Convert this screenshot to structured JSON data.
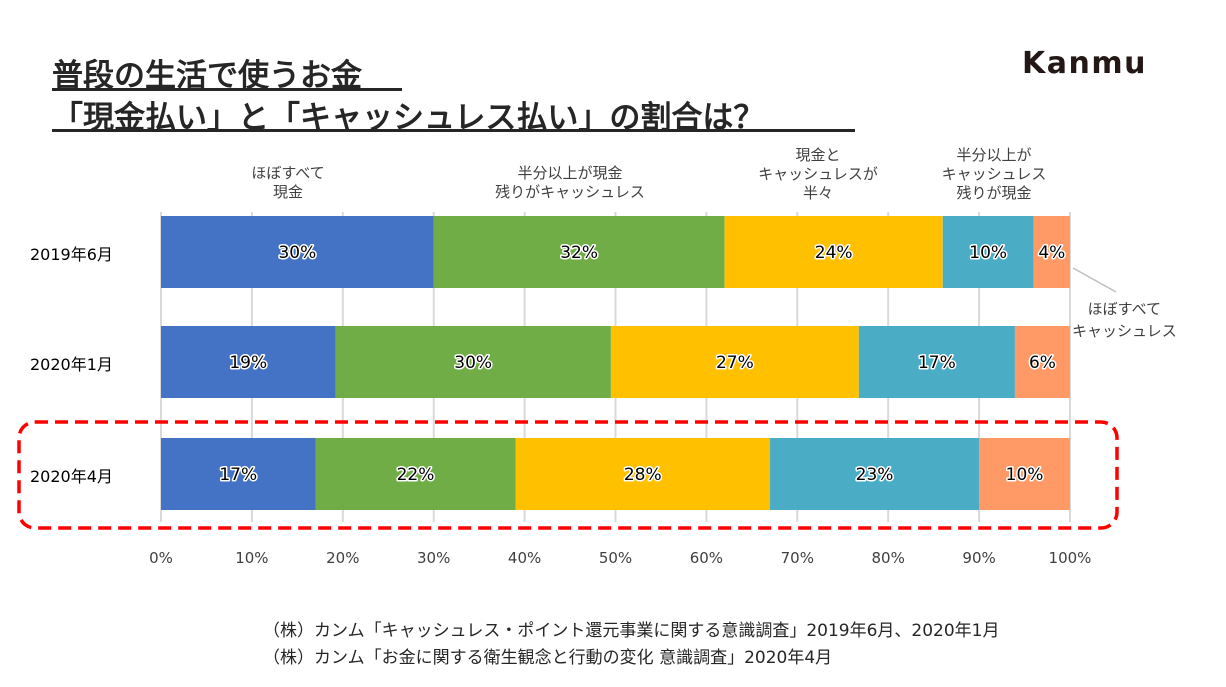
{
  "header": {
    "title_line1": "普段の生活で使うお金",
    "title_line2": "「現金払い」と「キャッシュレス払い」の割合は？",
    "logo": "Kanmu"
  },
  "chart_data": {
    "type": "bar",
    "orientation": "horizontal",
    "stacked": true,
    "normalized_percent": true,
    "title": "普段の生活で使うお金 「現金払い」と「キャッシュレス払い」の割合は？",
    "xlabel": "",
    "ylabel": "",
    "xlim": [
      0,
      100
    ],
    "x_ticks": [
      "0%",
      "10%",
      "20%",
      "30%",
      "40%",
      "50%",
      "60%",
      "70%",
      "80%",
      "90%",
      "100%"
    ],
    "grid": "vertical",
    "categories": [
      "2019年6月",
      "2020年1月",
      "2020年4月"
    ],
    "series": [
      {
        "name": "ほぼすべて現金",
        "label_lines": [
          "ほぼすべて",
          "現金"
        ],
        "color": "#4472C4",
        "values": [
          30,
          19,
          17
        ]
      },
      {
        "name": "半分以上が現金 残りがキャッシュレス",
        "label_lines": [
          "半分以上が現金",
          "残りがキャッシュレス"
        ],
        "color": "#70AD47",
        "values": [
          32,
          30,
          22
        ]
      },
      {
        "name": "現金とキャッシュレスが半々",
        "label_lines": [
          "現金と",
          "キャッシュレスが",
          "半々"
        ],
        "color": "#FFC000",
        "values": [
          24,
          27,
          28
        ]
      },
      {
        "name": "半分以上がキャッシュレス 残りが現金",
        "label_lines": [
          "半分以上が",
          "キャッシュレス",
          "残りが現金"
        ],
        "color": "#4BACC6",
        "values": [
          10,
          17,
          23
        ]
      },
      {
        "name": "ほぼすべてキャッシュレス",
        "label_lines": [
          "ほぼすべて",
          "キャッシュレス"
        ],
        "color": "#FF9966",
        "values": [
          4,
          6,
          10
        ]
      }
    ],
    "data_labels": [
      [
        "30%",
        "32%",
        "24%",
        "10%",
        "4%"
      ],
      [
        "19%",
        "30%",
        "27%",
        "17%",
        "6%"
      ],
      [
        "17%",
        "22%",
        "28%",
        "23%",
        "10%"
      ]
    ],
    "highlight": {
      "category": "2020年4月",
      "style": "red dashed rounded box",
      "color": "#FF0000"
    },
    "legend": "category labels above bars"
  },
  "sources": [
    "（株）カンム「キャッシュレス・ポイント還元事業に関する意識調査」2019年6月、2020年1月",
    "（株）カンム「お金に関する衛生観念と行動の変化 意識調査」2020年4月"
  ]
}
